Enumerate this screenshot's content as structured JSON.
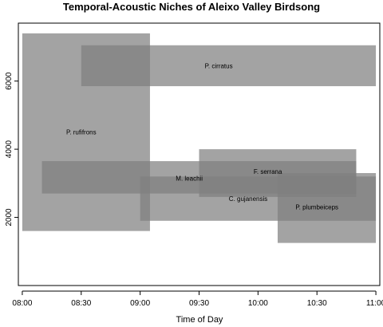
{
  "chart_data": {
    "type": "rectangle-range",
    "title": "Temporal-Acoustic Niches of Aleixo Valley Birdsong",
    "xlabel": "Time of Day",
    "ylabel": "",
    "x_ticks": [
      "08:00",
      "08:30",
      "09:00",
      "09:30",
      "10:00",
      "10:30",
      "11:00"
    ],
    "y_ticks": [
      2000,
      4000,
      6000
    ],
    "xlim": [
      "07:58",
      "11:02"
    ],
    "ylim": [
      0,
      7700
    ],
    "fill_color": "#808080",
    "fill_opacity": 0.72,
    "species": [
      {
        "name": "P. rufifrons",
        "x_start": "08:00",
        "x_end": "09:05",
        "y_low": 1600,
        "y_high": 7400,
        "label_x": "08:30",
        "label_y": 4500
      },
      {
        "name": "P. cirratus",
        "x_start": "08:30",
        "x_end": "11:00",
        "y_low": 5850,
        "y_high": 7050,
        "label_x": "09:40",
        "label_y": 6450
      },
      {
        "name": "M. leachii",
        "x_start": "08:10",
        "x_end": "10:50",
        "y_low": 2700,
        "y_high": 3650,
        "label_x": "09:25",
        "label_y": 3150
      },
      {
        "name": "F. serrana",
        "x_start": "09:30",
        "x_end": "10:50",
        "y_low": 2600,
        "y_high": 4000,
        "label_x": "10:05",
        "label_y": 3350
      },
      {
        "name": "C. gujanensis",
        "x_start": "09:00",
        "x_end": "11:00",
        "y_low": 1900,
        "y_high": 3200,
        "label_x": "09:55",
        "label_y": 2550
      },
      {
        "name": "P. plumbeiceps",
        "x_start": "10:10",
        "x_end": "11:00",
        "y_low": 1250,
        "y_high": 3300,
        "label_x": "10:30",
        "label_y": 2300
      }
    ]
  }
}
